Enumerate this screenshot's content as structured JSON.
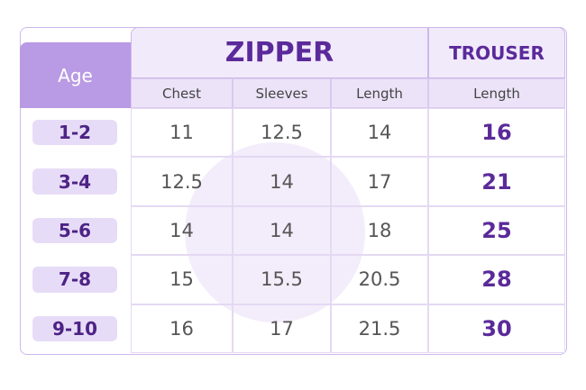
{
  "header": {
    "age": "Age",
    "zipper": "ZIPPER",
    "trouser": "TROUSER",
    "columns": [
      "Chest",
      "Sleeves",
      "Length",
      "Length"
    ]
  },
  "table": {
    "rows": [
      [
        "1-2",
        11,
        12.5,
        14,
        16
      ],
      [
        "3-4",
        12.5,
        14,
        17,
        21
      ],
      [
        "5-6",
        14,
        14,
        18,
        25
      ],
      [
        "7-8",
        15,
        15.5,
        20.5,
        28
      ],
      [
        "9-10",
        16,
        17,
        21.5,
        30
      ]
    ]
  }
}
